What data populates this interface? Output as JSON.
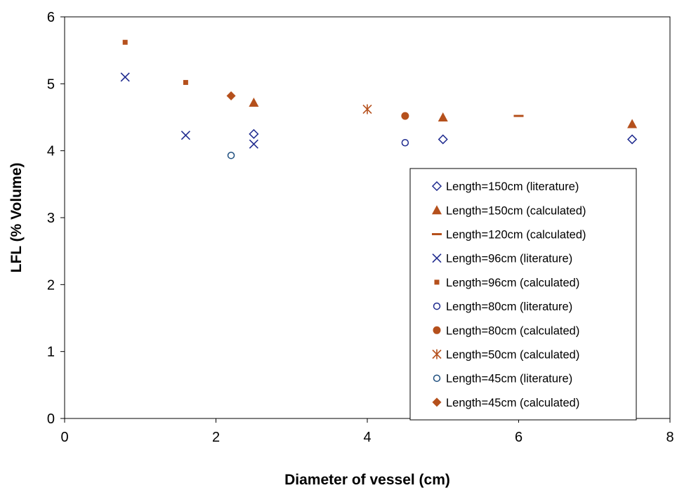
{
  "chart_data": {
    "type": "scatter",
    "title": "",
    "xlabel": "Diameter of vessel (cm)",
    "ylabel": "LFL (% Volume)",
    "xlim": [
      0,
      8
    ],
    "ylim": [
      0,
      6
    ],
    "x_ticks": [
      "0",
      "2",
      "4",
      "6",
      "8"
    ],
    "y_ticks": [
      "0",
      "1",
      "2",
      "3",
      "4",
      "5",
      "6"
    ],
    "grid": false,
    "legend_position": "right",
    "series": [
      {
        "name": "Length=150cm (literature)",
        "marker": "diamond-open",
        "color": "#1f2b8f",
        "points": [
          {
            "x": 2.5,
            "y": 4.25
          },
          {
            "x": 5.0,
            "y": 4.17
          },
          {
            "x": 7.5,
            "y": 4.17
          }
        ]
      },
      {
        "name": "Length=150cm (calculated)",
        "marker": "triangle",
        "color": "#b5501c",
        "points": [
          {
            "x": 2.5,
            "y": 4.72
          },
          {
            "x": 5.0,
            "y": 4.5
          },
          {
            "x": 7.5,
            "y": 4.4
          }
        ]
      },
      {
        "name": "Length=120cm (calculated)",
        "marker": "dash",
        "color": "#b5501c",
        "points": [
          {
            "x": 6.0,
            "y": 4.52
          }
        ]
      },
      {
        "name": "Length=96cm (literature)",
        "marker": "x",
        "color": "#1f2b8f",
        "points": [
          {
            "x": 0.8,
            "y": 5.1
          },
          {
            "x": 1.6,
            "y": 4.23
          },
          {
            "x": 2.5,
            "y": 4.1
          }
        ]
      },
      {
        "name": "Length=96cm (calculated)",
        "marker": "square",
        "color": "#b5501c",
        "points": [
          {
            "x": 0.8,
            "y": 5.62
          },
          {
            "x": 1.6,
            "y": 5.02
          }
        ]
      },
      {
        "name": "Length=80cm (literature)",
        "marker": "circle-open",
        "color": "#1f2b8f",
        "points": [
          {
            "x": 4.5,
            "y": 4.12
          }
        ]
      },
      {
        "name": "Length=80cm (calculated)",
        "marker": "circle",
        "color": "#b5501c",
        "points": [
          {
            "x": 4.5,
            "y": 4.52
          }
        ]
      },
      {
        "name": "Length=50cm (calculated)",
        "marker": "asterisk",
        "color": "#b5501c",
        "points": [
          {
            "x": 4.0,
            "y": 4.62
          }
        ]
      },
      {
        "name": "Length=45cm (literature)",
        "marker": "circle-open",
        "color": "#1f4f7f",
        "points": [
          {
            "x": 2.2,
            "y": 3.93
          }
        ]
      },
      {
        "name": "Length=45cm (calculated)",
        "marker": "diamond",
        "color": "#b5501c",
        "points": [
          {
            "x": 2.2,
            "y": 4.82
          }
        ]
      }
    ]
  }
}
